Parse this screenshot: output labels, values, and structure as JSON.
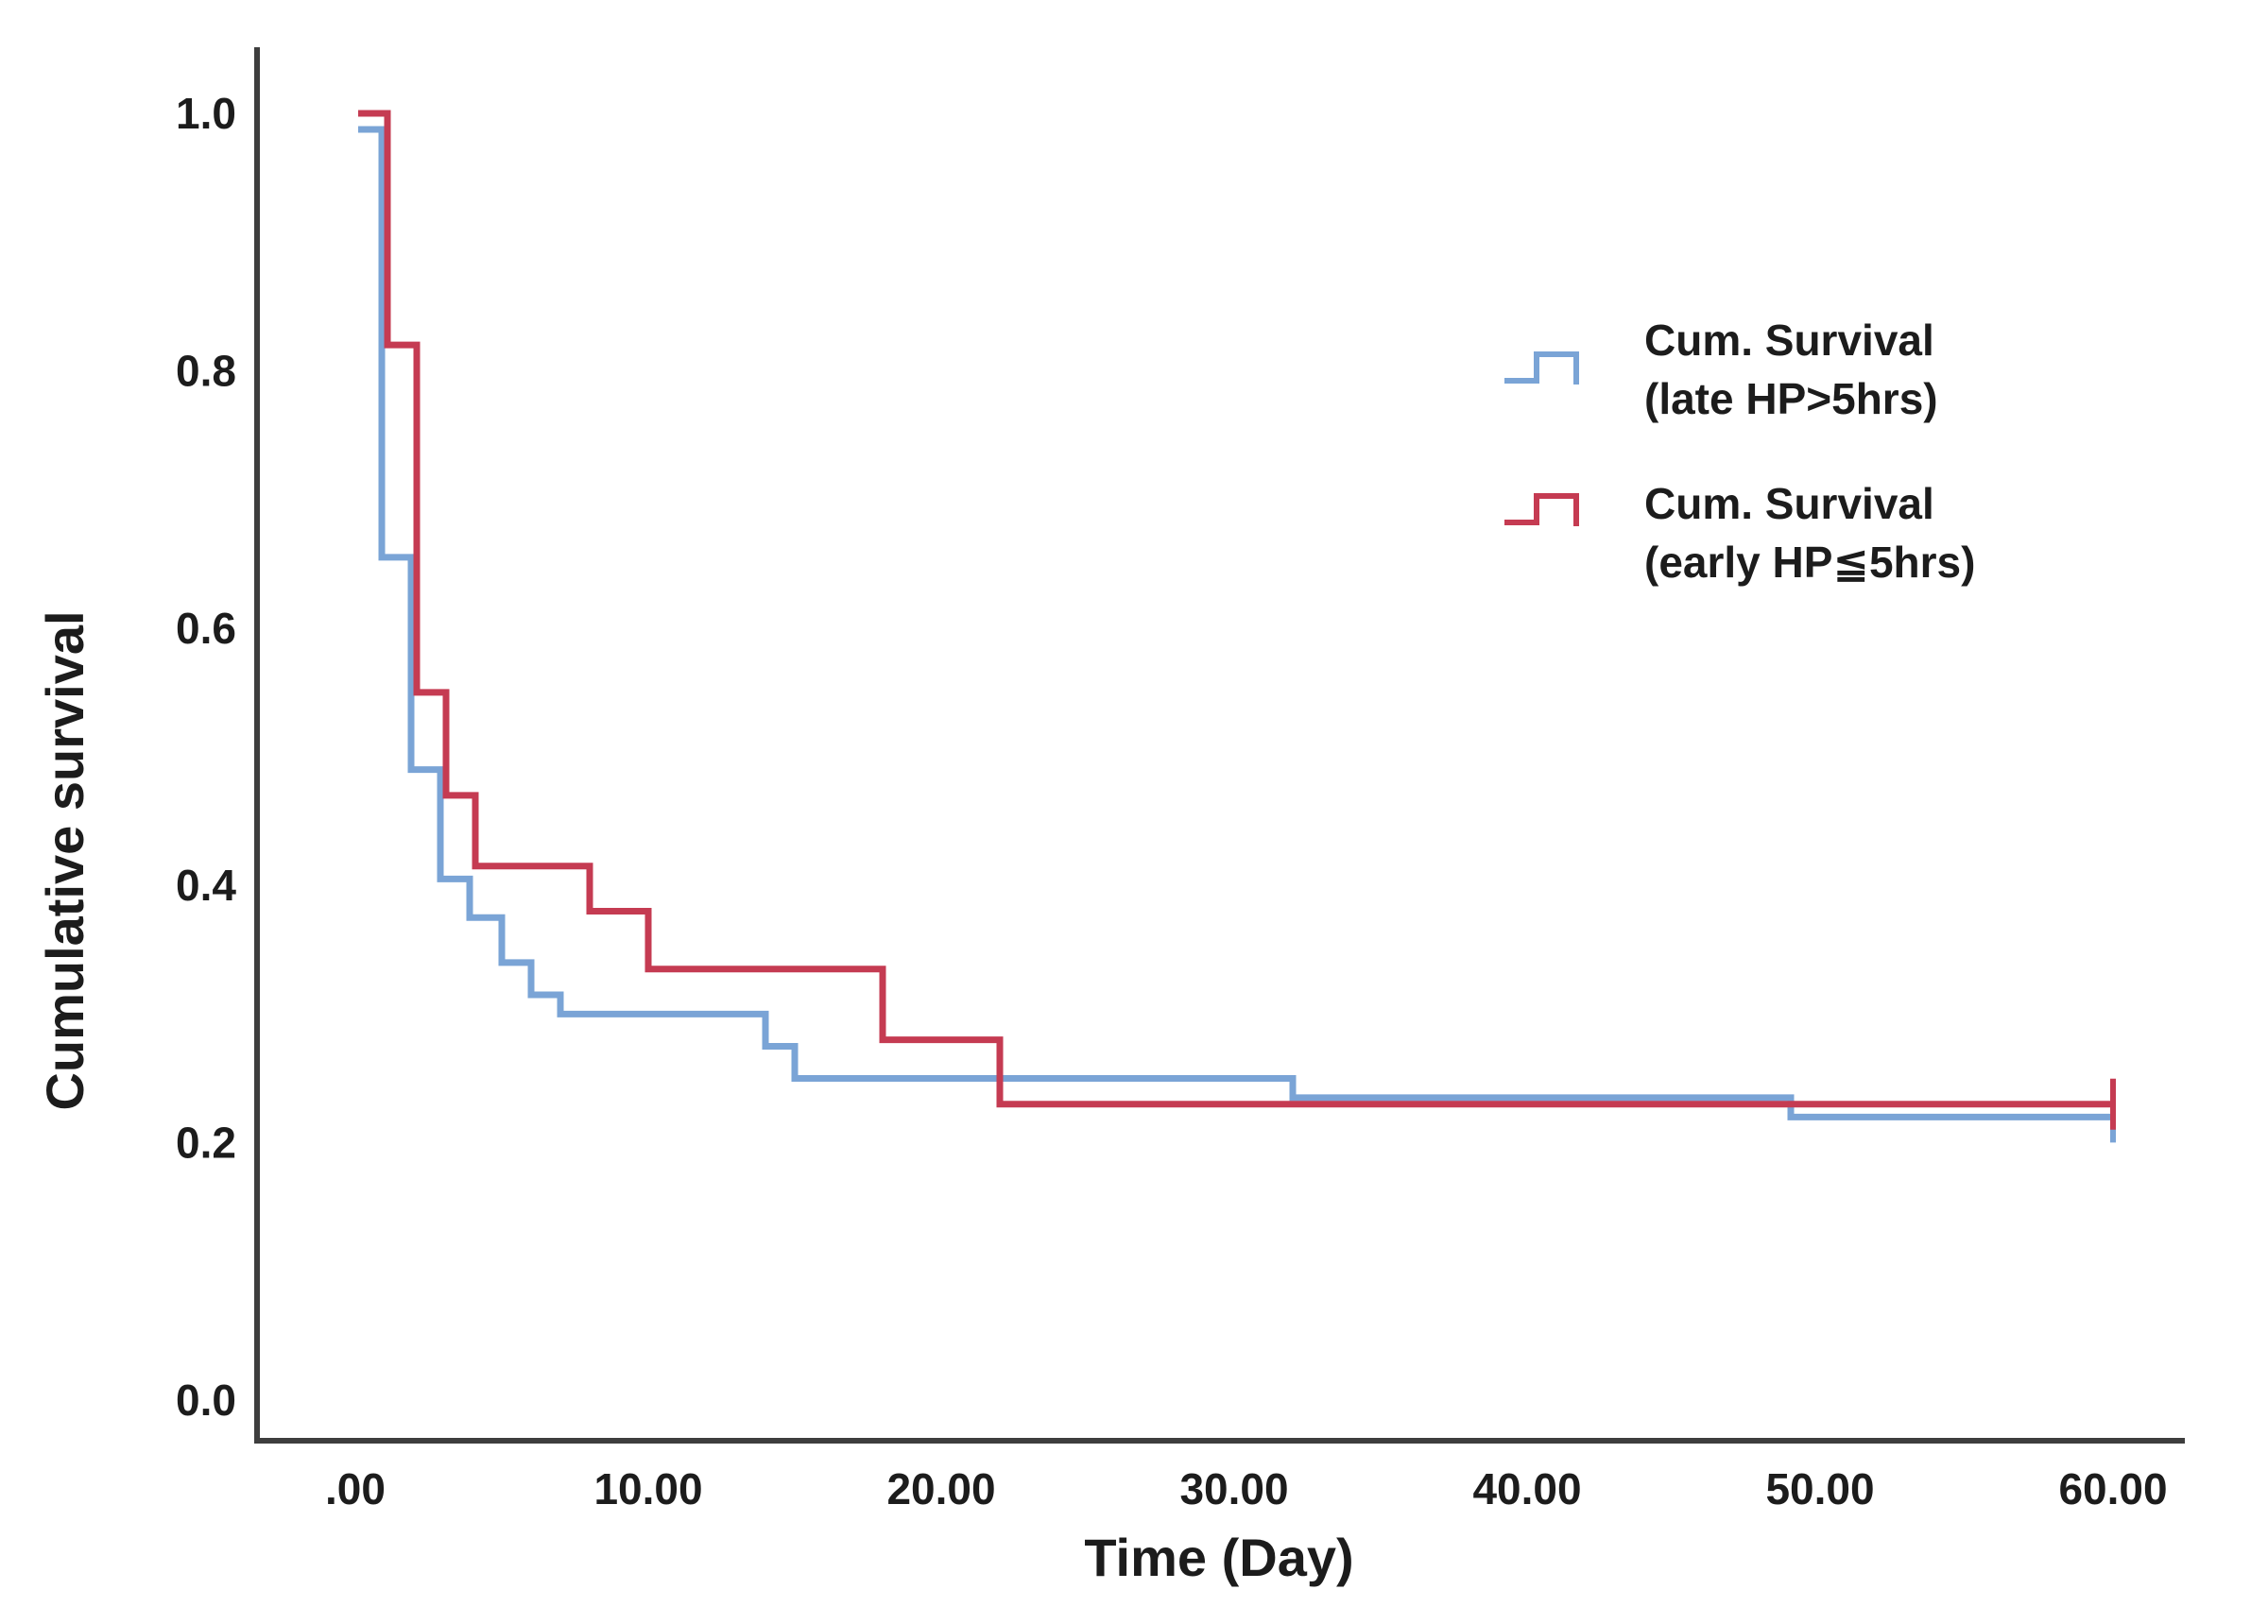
{
  "chart_data": {
    "type": "line",
    "subtype": "kaplan-meier-step",
    "title": "",
    "xlabel": "Time (Day)",
    "ylabel": "Cumulative survival",
    "xlim": [
      0,
      60
    ],
    "ylim": [
      0.0,
      1.0
    ],
    "grid": false,
    "legend_position": "upper-right-inside",
    "x_ticks": [
      {
        "value": 0,
        "label": ".00"
      },
      {
        "value": 10,
        "label": "10.00"
      },
      {
        "value": 20,
        "label": "20.00"
      },
      {
        "value": 30,
        "label": "30.00"
      },
      {
        "value": 40,
        "label": "40.00"
      },
      {
        "value": 50,
        "label": "50.00"
      },
      {
        "value": 60,
        "label": "60.00"
      }
    ],
    "y_ticks": [
      {
        "value": 1.0,
        "label": "1.0"
      },
      {
        "value": 0.8,
        "label": "0.8"
      },
      {
        "value": 0.6,
        "label": "0.6"
      },
      {
        "value": 0.4,
        "label": "0.4"
      },
      {
        "value": 0.2,
        "label": "0.2"
      },
      {
        "value": 0.0,
        "label": "0.0"
      }
    ],
    "series": [
      {
        "key": "late-hp",
        "name": "Cum. Survival (late HP>5hrs)",
        "legend_lines": [
          "Cum. Survival",
          "(late HP>5hrs)"
        ],
        "color": "#7aa4d6",
        "steps": [
          [
            0,
            1.0
          ],
          [
            1,
            0.655
          ],
          [
            2,
            0.49
          ],
          [
            3,
            0.405
          ],
          [
            4,
            0.375
          ],
          [
            5,
            0.34
          ],
          [
            6,
            0.315
          ],
          [
            7,
            0.3
          ],
          [
            14,
            0.275
          ],
          [
            15,
            0.25
          ],
          [
            32,
            0.235
          ],
          [
            49,
            0.22
          ]
        ],
        "end_day": 60,
        "censored": [
          [
            60,
            0.22
          ]
        ]
      },
      {
        "key": "early-hp",
        "name": "Cum. Survival (early HP≦5hrs)",
        "legend_lines": [
          "Cum. Survival",
          "(early HP≦5hrs)"
        ],
        "color": "#c53b52",
        "steps": [
          [
            0,
            1.0
          ],
          [
            1,
            0.82
          ],
          [
            2,
            0.55
          ],
          [
            3,
            0.47
          ],
          [
            4,
            0.415
          ],
          [
            8,
            0.38
          ],
          [
            10,
            0.335
          ],
          [
            18,
            0.28
          ],
          [
            22,
            0.23
          ]
        ],
        "end_day": 60,
        "censored": [
          [
            60,
            0.23
          ]
        ]
      }
    ]
  }
}
